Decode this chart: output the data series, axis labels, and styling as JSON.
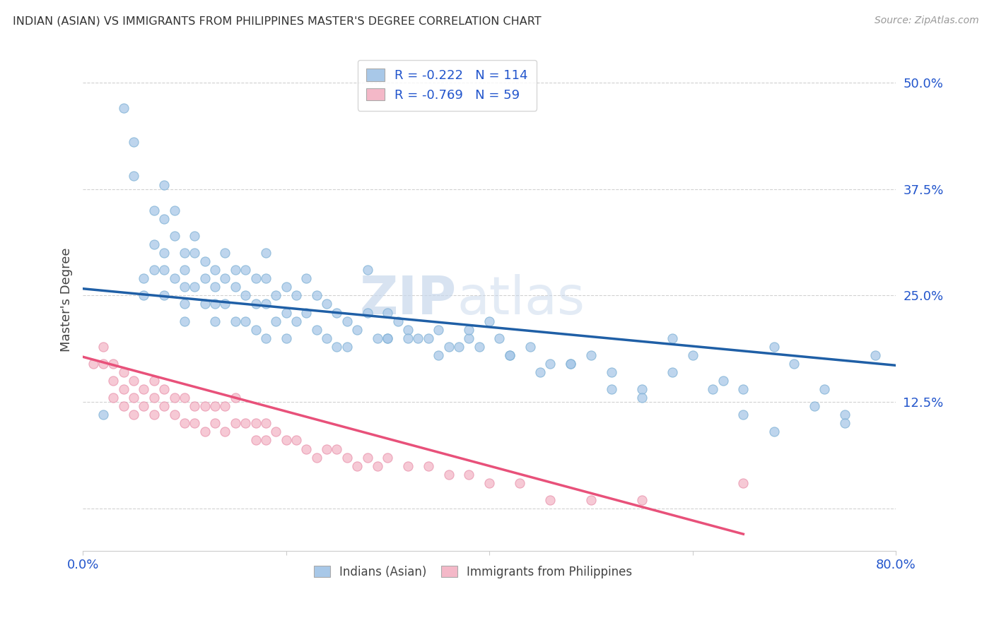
{
  "title": "INDIAN (ASIAN) VS IMMIGRANTS FROM PHILIPPINES MASTER'S DEGREE CORRELATION CHART",
  "source": "Source: ZipAtlas.com",
  "ylabel": "Master's Degree",
  "yticks": [
    0.0,
    0.125,
    0.25,
    0.375,
    0.5
  ],
  "ytick_labels": [
    "",
    "12.5%",
    "25.0%",
    "37.5%",
    "50.0%"
  ],
  "xlim": [
    0.0,
    0.8
  ],
  "ylim": [
    -0.05,
    0.54
  ],
  "blue_color": "#a8c8e8",
  "pink_color": "#f4b8c8",
  "blue_edge_color": "#7bafd4",
  "pink_edge_color": "#e890aa",
  "blue_line_color": "#1f5fa6",
  "pink_line_color": "#e8517a",
  "legend_text_color": "#2255cc",
  "watermark_color": "#dce8f0",
  "bg_color": "#ffffff",
  "grid_color": "#cccccc",
  "blue_trend_x": [
    0.0,
    0.8
  ],
  "blue_trend_y": [
    0.258,
    0.168
  ],
  "pink_trend_x": [
    0.0,
    0.65
  ],
  "pink_trend_y": [
    0.178,
    -0.03
  ],
  "blue_scatter_x": [
    0.02,
    0.04,
    0.05,
    0.05,
    0.06,
    0.06,
    0.07,
    0.07,
    0.07,
    0.08,
    0.08,
    0.08,
    0.08,
    0.08,
    0.09,
    0.09,
    0.09,
    0.1,
    0.1,
    0.1,
    0.1,
    0.1,
    0.11,
    0.11,
    0.11,
    0.12,
    0.12,
    0.12,
    0.13,
    0.13,
    0.13,
    0.13,
    0.14,
    0.14,
    0.14,
    0.15,
    0.15,
    0.15,
    0.16,
    0.16,
    0.16,
    0.17,
    0.17,
    0.17,
    0.18,
    0.18,
    0.18,
    0.18,
    0.19,
    0.19,
    0.2,
    0.2,
    0.2,
    0.21,
    0.21,
    0.22,
    0.22,
    0.23,
    0.23,
    0.24,
    0.24,
    0.25,
    0.25,
    0.26,
    0.26,
    0.27,
    0.28,
    0.28,
    0.29,
    0.3,
    0.3,
    0.31,
    0.32,
    0.33,
    0.34,
    0.35,
    0.36,
    0.37,
    0.38,
    0.39,
    0.4,
    0.41,
    0.42,
    0.44,
    0.46,
    0.48,
    0.5,
    0.52,
    0.55,
    0.58,
    0.6,
    0.63,
    0.65,
    0.68,
    0.7,
    0.73,
    0.75,
    0.78,
    0.3,
    0.32,
    0.35,
    0.38,
    0.42,
    0.45,
    0.48,
    0.52,
    0.55,
    0.58,
    0.62,
    0.65,
    0.68,
    0.72,
    0.75
  ],
  "blue_scatter_y": [
    0.11,
    0.47,
    0.43,
    0.39,
    0.27,
    0.25,
    0.35,
    0.31,
    0.28,
    0.38,
    0.34,
    0.3,
    0.28,
    0.25,
    0.35,
    0.32,
    0.27,
    0.3,
    0.28,
    0.26,
    0.24,
    0.22,
    0.32,
    0.3,
    0.26,
    0.29,
    0.27,
    0.24,
    0.28,
    0.26,
    0.24,
    0.22,
    0.3,
    0.27,
    0.24,
    0.28,
    0.26,
    0.22,
    0.28,
    0.25,
    0.22,
    0.27,
    0.24,
    0.21,
    0.3,
    0.27,
    0.24,
    0.2,
    0.25,
    0.22,
    0.26,
    0.23,
    0.2,
    0.25,
    0.22,
    0.27,
    0.23,
    0.25,
    0.21,
    0.24,
    0.2,
    0.23,
    0.19,
    0.22,
    0.19,
    0.21,
    0.23,
    0.28,
    0.2,
    0.23,
    0.2,
    0.22,
    0.21,
    0.2,
    0.2,
    0.21,
    0.19,
    0.19,
    0.2,
    0.19,
    0.22,
    0.2,
    0.18,
    0.19,
    0.17,
    0.17,
    0.18,
    0.16,
    0.14,
    0.2,
    0.18,
    0.15,
    0.14,
    0.19,
    0.17,
    0.14,
    0.11,
    0.18,
    0.2,
    0.2,
    0.18,
    0.21,
    0.18,
    0.16,
    0.17,
    0.14,
    0.13,
    0.16,
    0.14,
    0.11,
    0.09,
    0.12,
    0.1
  ],
  "pink_scatter_x": [
    0.01,
    0.02,
    0.02,
    0.03,
    0.03,
    0.03,
    0.04,
    0.04,
    0.04,
    0.05,
    0.05,
    0.05,
    0.06,
    0.06,
    0.07,
    0.07,
    0.07,
    0.08,
    0.08,
    0.09,
    0.09,
    0.1,
    0.1,
    0.11,
    0.11,
    0.12,
    0.12,
    0.13,
    0.13,
    0.14,
    0.14,
    0.15,
    0.15,
    0.16,
    0.17,
    0.17,
    0.18,
    0.18,
    0.19,
    0.2,
    0.21,
    0.22,
    0.23,
    0.24,
    0.25,
    0.26,
    0.27,
    0.28,
    0.29,
    0.3,
    0.32,
    0.34,
    0.36,
    0.38,
    0.4,
    0.43,
    0.46,
    0.5,
    0.55,
    0.65
  ],
  "pink_scatter_y": [
    0.17,
    0.19,
    0.17,
    0.17,
    0.15,
    0.13,
    0.16,
    0.14,
    0.12,
    0.15,
    0.13,
    0.11,
    0.14,
    0.12,
    0.15,
    0.13,
    0.11,
    0.14,
    0.12,
    0.13,
    0.11,
    0.13,
    0.1,
    0.12,
    0.1,
    0.12,
    0.09,
    0.12,
    0.1,
    0.12,
    0.09,
    0.13,
    0.1,
    0.1,
    0.1,
    0.08,
    0.1,
    0.08,
    0.09,
    0.08,
    0.08,
    0.07,
    0.06,
    0.07,
    0.07,
    0.06,
    0.05,
    0.06,
    0.05,
    0.06,
    0.05,
    0.05,
    0.04,
    0.04,
    0.03,
    0.03,
    0.01,
    0.01,
    0.01,
    0.03
  ]
}
